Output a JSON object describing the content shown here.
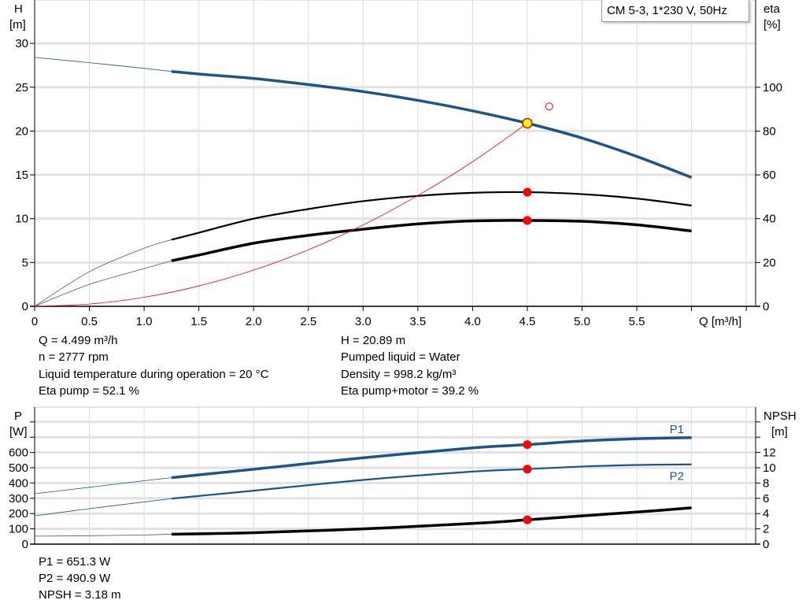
{
  "title": "CM 5-3, 1*230 V, 50Hz",
  "colors": {
    "blue": "#1a5590",
    "black": "#000000",
    "red": "#ff0000",
    "duty_fill": "#ffff00",
    "grid": "#e0e0e0"
  },
  "chart_data": [
    {
      "type": "line",
      "name": "head-efficiency",
      "xlabel": "Q [m³/h]",
      "ylabel": "H",
      "yunit": "[m]",
      "y2label": "eta",
      "y2unit": "[%]",
      "xlim": [
        0,
        6.5
      ],
      "ylim": [
        0,
        30
      ],
      "y2lim": [
        0,
        108
      ],
      "xticks": [
        "0",
        "0.5",
        "1.0",
        "1.5",
        "2.0",
        "2.5",
        "3.0",
        "3.5",
        "4.0",
        "4.5",
        "5.0",
        "5.5"
      ],
      "yticks": [
        "0",
        "5",
        "10",
        "15",
        "20",
        "25",
        "30"
      ],
      "y2ticks": [
        "0",
        "20",
        "40",
        "60",
        "80",
        "100"
      ],
      "grid": true,
      "series": [
        {
          "id": "H",
          "axis": "left",
          "color": "#1a5590",
          "x": [
            0,
            0.5,
            1.0,
            1.25,
            1.5,
            2.0,
            2.5,
            3.0,
            3.5,
            4.0,
            4.5,
            5.0,
            5.5,
            6.0
          ],
          "y": [
            28.4,
            27.8,
            27.15,
            26.8,
            26.5,
            26.0,
            25.3,
            24.5,
            23.5,
            22.3,
            20.89,
            19.2,
            17.1,
            14.7
          ],
          "thick_from": 1.25
        },
        {
          "id": "eta_pump",
          "axis": "right",
          "color": "#000000",
          "x": [
            0,
            0.5,
            1.0,
            1.25,
            1.5,
            2.0,
            2.5,
            3.0,
            3.5,
            4.0,
            4.5,
            5.0,
            5.5,
            6.0
          ],
          "y": [
            0,
            15.8,
            26.5,
            30.4,
            33.6,
            40,
            44.4,
            48,
            50.4,
            51.8,
            52.1,
            51.2,
            49.2,
            46
          ],
          "thick_from": 1.25
        },
        {
          "id": "eta_pump_motor",
          "axis": "right",
          "color": "#000000",
          "x": [
            0,
            0.5,
            1.0,
            1.25,
            1.5,
            2.0,
            2.5,
            3.0,
            3.5,
            4.0,
            4.5,
            5.0,
            5.5,
            6.0
          ],
          "y": [
            0,
            10,
            17.2,
            20.8,
            23.4,
            28.8,
            32.4,
            35.2,
            37.6,
            39,
            39.2,
            38.8,
            37.2,
            34.4
          ],
          "thick_from": 1.25
        },
        {
          "id": "system",
          "axis": "left",
          "color": "#ff0000",
          "x": [
            0,
            0.5,
            1.0,
            1.5,
            2.0,
            2.5,
            3.0,
            3.5,
            4.0,
            4.5
          ],
          "y": [
            0,
            0.26,
            1.03,
            2.32,
            4.13,
            6.45,
            9.28,
            12.64,
            16.5,
            20.89
          ]
        }
      ],
      "points": [
        {
          "id": "duty-point",
          "x": 4.5,
          "y": 20.89,
          "axis": "left",
          "style": "yellow"
        },
        {
          "id": "eta-pump-point",
          "x": 4.5,
          "y": 52.1,
          "axis": "right",
          "style": "red"
        },
        {
          "id": "eta-total-point",
          "x": 4.5,
          "y": 39.2,
          "axis": "right",
          "style": "red"
        },
        {
          "id": "setpoint-marker",
          "x": 4.7,
          "y": 22.8,
          "axis": "left",
          "style": "open"
        }
      ]
    },
    {
      "type": "line",
      "name": "power-npsh",
      "ylabel": "P",
      "yunit": "[W]",
      "y2label": "NPSH",
      "y2unit": "[m]",
      "xlim": [
        0,
        6.5
      ],
      "ylim": [
        0,
        800
      ],
      "y2lim": [
        0,
        16
      ],
      "yticks": [
        "0",
        "100",
        "200",
        "300",
        "400",
        "500",
        "600"
      ],
      "y2ticks": [
        "0",
        "2",
        "4",
        "6",
        "8",
        "10",
        "12"
      ],
      "grid": true,
      "series": [
        {
          "id": "P1",
          "name": "P1",
          "axis": "left",
          "color": "#1a5590",
          "x": [
            0,
            0.5,
            1.0,
            1.25,
            2.0,
            3.0,
            4.0,
            4.5,
            5.0,
            5.5,
            6.0
          ],
          "y": [
            330,
            372,
            415,
            435,
            490,
            565,
            630,
            651.3,
            675,
            690,
            697
          ],
          "thick_from": 1.25,
          "width": 3.5
        },
        {
          "id": "P2",
          "name": "P2",
          "axis": "left",
          "color": "#1a5590",
          "x": [
            0,
            0.5,
            1.0,
            1.25,
            2.0,
            3.0,
            4.0,
            4.5,
            5.0,
            5.5,
            6.0
          ],
          "y": [
            185,
            232,
            276,
            298,
            350,
            420,
            475,
            490.9,
            508,
            518,
            522
          ],
          "thick_from": 1.25,
          "width": 2.2
        },
        {
          "id": "NPSH",
          "axis": "right",
          "color": "#000000",
          "x": [
            0,
            0.5,
            1.0,
            1.25,
            2.0,
            3.0,
            4.0,
            4.5,
            5.0,
            5.5,
            6.0
          ],
          "y": [
            1.04,
            1.1,
            1.2,
            1.3,
            1.5,
            2.0,
            2.7,
            3.18,
            3.7,
            4.2,
            4.75
          ],
          "thick_from": 1.25,
          "width": 3.5
        }
      ],
      "points": [
        {
          "id": "p1-point",
          "x": 4.5,
          "y": 651.3,
          "axis": "left",
          "style": "red"
        },
        {
          "id": "p2-point",
          "x": 4.5,
          "y": 490.9,
          "axis": "left",
          "style": "red"
        },
        {
          "id": "npsh-point",
          "x": 4.5,
          "y": 3.18,
          "axis": "right",
          "style": "red"
        }
      ]
    }
  ],
  "results_top": {
    "left": [
      "Q = 4.499 m³/h",
      "n = 2777 rpm",
      "Liquid temperature during operation = 20 °C",
      "Eta pump = 52.1 %"
    ],
    "right": [
      "H = 20.89 m",
      "Pumped liquid = Water",
      "Density = 998.2 kg/m³",
      "Eta pump+motor = 39.2 %"
    ]
  },
  "results_bottom": [
    "P1 = 651.3 W",
    "P2 = 490.9 W",
    "NPSH = 3.18 m"
  ]
}
